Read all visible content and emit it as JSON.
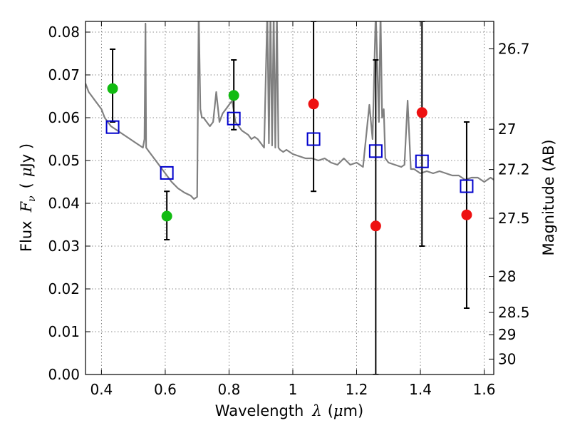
{
  "chart_data": {
    "type": "scatter",
    "xlabel": "Wavelength",
    "xlabel_symbol": "λ",
    "xlabel_unit_open": "(",
    "xlabel_unit_mu": "μ",
    "xlabel_unit_rest": "m)",
    "ylabel_left": "Flux",
    "ylabel_left_symbol": "F",
    "ylabel_left_sub": "ν",
    "ylabel_left_unit_open": "(",
    "ylabel_left_unit_mu": "μ",
    "ylabel_left_unit_rest": "Jy )",
    "ylabel_right": "Magnitude (AB)",
    "xlim": [
      0.35,
      1.63
    ],
    "ylim": [
      0.0,
      0.0825
    ],
    "grid": true,
    "x_ticks": [
      {
        "value": 0.4,
        "label": "0.4"
      },
      {
        "value": 0.6,
        "label": "0.6"
      },
      {
        "value": 0.8,
        "label": "0.8"
      },
      {
        "value": 1.0,
        "label": "1"
      },
      {
        "value": 1.2,
        "label": "1.2"
      },
      {
        "value": 1.4,
        "label": "1.4"
      },
      {
        "value": 1.6,
        "label": "1.6"
      }
    ],
    "y_ticks": [
      {
        "value": 0.0,
        "label": "0.00"
      },
      {
        "value": 0.01,
        "label": "0.01"
      },
      {
        "value": 0.02,
        "label": "0.02"
      },
      {
        "value": 0.03,
        "label": "0.03"
      },
      {
        "value": 0.04,
        "label": "0.04"
      },
      {
        "value": 0.05,
        "label": "0.05"
      },
      {
        "value": 0.06,
        "label": "0.06"
      },
      {
        "value": 0.07,
        "label": "0.07"
      },
      {
        "value": 0.08,
        "label": "0.08"
      }
    ],
    "right_ticks": [
      {
        "flux": 0.0761,
        "label": "26.7"
      },
      {
        "flux": 0.0573,
        "label": "27"
      },
      {
        "flux": 0.0479,
        "label": "27.2"
      },
      {
        "flux": 0.0365,
        "label": "27.5"
      },
      {
        "flux": 0.0229,
        "label": "28"
      },
      {
        "flux": 0.0145,
        "label": "28.5"
      },
      {
        "flux": 0.0093,
        "label": "29"
      },
      {
        "flux": 0.0036,
        "label": "30"
      }
    ],
    "model_spectrum": {
      "color": "#808080",
      "x": [
        0.35,
        0.36,
        0.37,
        0.38,
        0.39,
        0.4,
        0.41,
        0.42,
        0.43,
        0.44,
        0.45,
        0.46,
        0.47,
        0.48,
        0.49,
        0.5,
        0.51,
        0.52,
        0.53,
        0.535,
        0.538,
        0.54,
        0.545,
        0.55,
        0.56,
        0.58,
        0.6,
        0.62,
        0.64,
        0.66,
        0.68,
        0.69,
        0.7,
        0.705,
        0.71,
        0.715,
        0.72,
        0.73,
        0.74,
        0.75,
        0.76,
        0.77,
        0.78,
        0.79,
        0.8,
        0.81,
        0.82,
        0.83,
        0.84,
        0.85,
        0.86,
        0.87,
        0.88,
        0.89,
        0.9,
        0.91,
        0.92,
        0.925,
        0.93,
        0.935,
        0.94,
        0.945,
        0.95,
        0.955,
        0.96,
        0.97,
        0.98,
        1.0,
        1.02,
        1.04,
        1.06,
        1.08,
        1.1,
        1.12,
        1.14,
        1.16,
        1.18,
        1.2,
        1.22,
        1.24,
        1.25,
        1.26,
        1.27,
        1.275,
        1.28,
        1.285,
        1.29,
        1.3,
        1.32,
        1.34,
        1.35,
        1.36,
        1.37,
        1.38,
        1.4,
        1.42,
        1.44,
        1.46,
        1.48,
        1.5,
        1.52,
        1.54,
        1.56,
        1.58,
        1.6,
        1.62,
        1.63
      ],
      "y": [
        0.068,
        0.066,
        0.065,
        0.064,
        0.063,
        0.062,
        0.06,
        0.059,
        0.058,
        0.0575,
        0.057,
        0.0565,
        0.056,
        0.0555,
        0.055,
        0.0545,
        0.054,
        0.0535,
        0.053,
        0.055,
        0.082,
        0.053,
        0.0525,
        0.052,
        0.051,
        0.049,
        0.047,
        0.045,
        0.0435,
        0.0425,
        0.0418,
        0.041,
        0.0415,
        0.085,
        0.062,
        0.06,
        0.06,
        0.059,
        0.058,
        0.059,
        0.066,
        0.059,
        0.061,
        0.062,
        0.063,
        0.064,
        0.059,
        0.058,
        0.057,
        0.0565,
        0.056,
        0.055,
        0.0555,
        0.055,
        0.054,
        0.053,
        0.085,
        0.054,
        0.085,
        0.0535,
        0.085,
        0.053,
        0.085,
        0.053,
        0.0525,
        0.052,
        0.0525,
        0.0515,
        0.051,
        0.0505,
        0.0505,
        0.05,
        0.0505,
        0.0495,
        0.049,
        0.0505,
        0.049,
        0.0495,
        0.0485,
        0.063,
        0.055,
        0.085,
        0.059,
        0.085,
        0.06,
        0.062,
        0.0505,
        0.0495,
        0.049,
        0.0485,
        0.049,
        0.064,
        0.048,
        0.048,
        0.047,
        0.0475,
        0.047,
        0.0475,
        0.047,
        0.0465,
        0.0465,
        0.0455,
        0.046,
        0.046,
        0.045,
        0.046,
        0.0455
      ]
    },
    "model_points": {
      "color": "#0000cc",
      "x": [
        0.435,
        0.605,
        0.815,
        1.065,
        1.26,
        1.405,
        1.545
      ],
      "y": [
        0.0578,
        0.0471,
        0.0598,
        0.055,
        0.0522,
        0.0498,
        0.044
      ]
    },
    "detections": {
      "color": "#11bb11",
      "x": [
        0.435,
        0.605,
        0.815
      ],
      "y": [
        0.0668,
        0.037,
        0.0652
      ],
      "err_low": [
        0.059,
        0.0315,
        0.0572
      ],
      "err_high": [
        0.076,
        0.0428,
        0.0735
      ]
    },
    "upper_limits": {
      "color": "#ee1111",
      "x": [
        1.065,
        1.26,
        1.405,
        1.545
      ],
      "y": [
        0.0632,
        0.0347,
        0.0612,
        0.0373
      ],
      "err_low": [
        0.0428,
        0.0,
        0.03,
        0.0155
      ],
      "err_high": [
        0.0825,
        0.0735,
        0.0825,
        0.059
      ]
    }
  }
}
